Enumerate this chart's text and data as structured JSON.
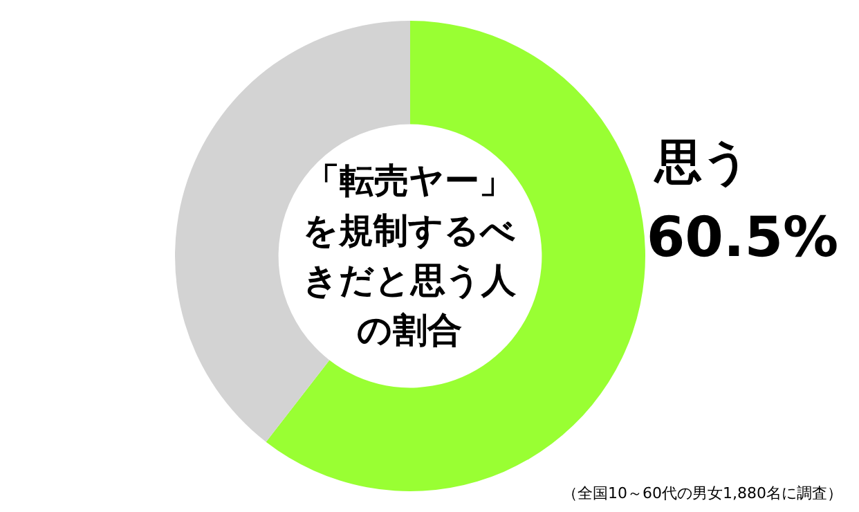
{
  "chart_data": {
    "type": "donut",
    "title": "「転売ヤー」を規制するべきだと思う人の割合",
    "categories": [
      "思う",
      null
    ],
    "values": [
      60.5,
      39.5
    ],
    "value_labels": [
      "60.5%",
      null
    ],
    "colors": [
      "#99ff33",
      "#d3d3d3"
    ],
    "legend": false,
    "annotations": [
      "（全国10～60代の男女1,880名に調査）"
    ]
  }
}
